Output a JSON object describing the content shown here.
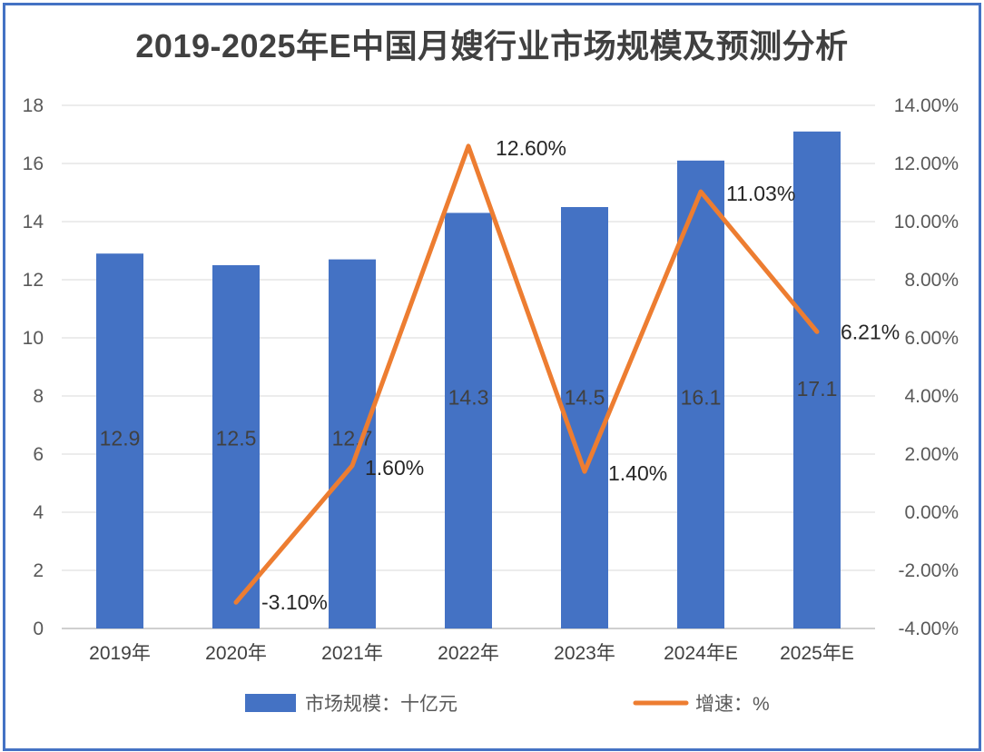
{
  "chart_data": {
    "type": "bar",
    "title": "2019-2025年E中国月嫂行业市场规模及预测分析",
    "categories": [
      "2019年",
      "2020年",
      "2021年",
      "2022年",
      "2023年",
      "2024年E",
      "2025年E"
    ],
    "series": [
      {
        "name": "市场规模：十亿元",
        "type": "bar",
        "axis": "left",
        "color": "#4472c4",
        "values": [
          12.9,
          12.5,
          12.7,
          14.3,
          14.5,
          16.1,
          17.1
        ],
        "labels": [
          "12.9",
          "12.5",
          "12.7",
          "14.3",
          "14.5",
          "16.1",
          "17.1"
        ]
      },
      {
        "name": "增速：%",
        "type": "line",
        "axis": "right",
        "color": "#ed7d31",
        "values": [
          null,
          -3.1,
          1.6,
          12.6,
          1.4,
          11.03,
          6.21
        ],
        "labels": [
          "",
          "-3.10%",
          "1.60%",
          "12.60%",
          "1.40%",
          "11.03%",
          "6.21%"
        ]
      }
    ],
    "y_left": {
      "min": 0,
      "max": 18,
      "step": 2,
      "ticks": [
        "0",
        "2",
        "4",
        "6",
        "8",
        "10",
        "12",
        "14",
        "16",
        "18"
      ]
    },
    "y_right": {
      "min": -4,
      "max": 14,
      "step": 2,
      "ticks": [
        "-4.00%",
        "-2.00%",
        "0.00%",
        "2.00%",
        "4.00%",
        "6.00%",
        "8.00%",
        "10.00%",
        "12.00%",
        "14.00%"
      ]
    },
    "grid": true,
    "legend_position": "bottom"
  }
}
